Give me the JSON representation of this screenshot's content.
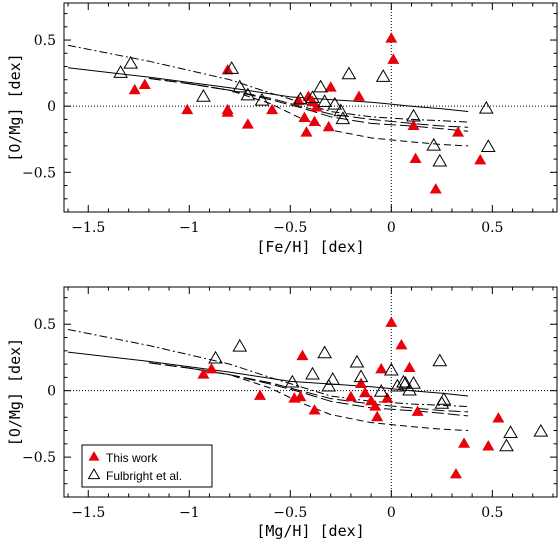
{
  "chart_data": [
    {
      "type": "scatter",
      "xlabel": "[Fe/H] [dex]",
      "ylabel": "[O/Mg] [dex]",
      "xlim": [
        -1.62,
        0.82
      ],
      "ylim": [
        -0.8,
        0.78
      ],
      "xticks": [
        -1.5,
        -1,
        -0.5,
        0,
        0.5
      ],
      "xtick_labels": [
        "−1.5",
        "−1",
        "−0.5",
        "0",
        "0.5"
      ],
      "yticks": [
        -0.5,
        0,
        0.5
      ],
      "ytick_labels": [
        "−0.5",
        "0",
        "0.5"
      ],
      "reference_lines": {
        "x": 0,
        "y": 0,
        "style": "dotted"
      },
      "series": [
        {
          "name": "This work",
          "marker": "filled-triangle",
          "color": "#e8000b",
          "points": [
            [
              0.0,
              0.51
            ],
            [
              0.01,
              0.35
            ],
            [
              -0.81,
              0.27
            ],
            [
              -1.27,
              0.12
            ],
            [
              -1.22,
              0.16
            ],
            [
              -1.01,
              -0.03
            ],
            [
              -0.81,
              -0.03
            ],
            [
              -0.81,
              -0.05
            ],
            [
              -0.71,
              -0.14
            ],
            [
              -0.59,
              -0.03
            ],
            [
              -0.46,
              0.04
            ],
            [
              -0.41,
              0.07
            ],
            [
              -0.39,
              0.03
            ],
            [
              -0.37,
              -0.01
            ],
            [
              -0.3,
              0.14
            ],
            [
              -0.16,
              0.07
            ],
            [
              -0.43,
              -0.09
            ],
            [
              -0.42,
              -0.2
            ],
            [
              -0.38,
              -0.12
            ],
            [
              -0.31,
              -0.16
            ],
            [
              0.11,
              -0.15
            ],
            [
              0.12,
              -0.4
            ],
            [
              0.22,
              -0.63
            ],
            [
              0.33,
              -0.2
            ],
            [
              0.44,
              -0.41
            ]
          ]
        },
        {
          "name": "Fulbright et al.",
          "marker": "open-triangle",
          "color": "#000000",
          "points": [
            [
              -1.34,
              0.25
            ],
            [
              -1.29,
              0.32
            ],
            [
              -0.93,
              0.07
            ],
            [
              -0.79,
              0.28
            ],
            [
              -0.75,
              0.14
            ],
            [
              -0.71,
              0.08
            ],
            [
              -0.64,
              0.04
            ],
            [
              -0.45,
              0.05
            ],
            [
              -0.39,
              0.06
            ],
            [
              -0.35,
              0.14
            ],
            [
              -0.33,
              0.03
            ],
            [
              -0.28,
              0.01
            ],
            [
              -0.25,
              -0.04
            ],
            [
              -0.24,
              -0.1
            ],
            [
              -0.21,
              0.24
            ],
            [
              -0.04,
              0.22
            ],
            [
              0.11,
              -0.08
            ],
            [
              0.21,
              -0.3
            ],
            [
              0.24,
              -0.42
            ],
            [
              0.47,
              -0.02
            ],
            [
              0.48,
              -0.31
            ]
          ]
        }
      ],
      "model_curves": [
        {
          "style": "solid",
          "x": [
            -1.6,
            -1.2,
            -0.8,
            -0.5,
            -0.3,
            -0.1,
            0.1,
            0.25,
            0.38
          ],
          "y": [
            0.29,
            0.22,
            0.14,
            0.07,
            0.05,
            0.03,
            0.0,
            -0.02,
            -0.04
          ]
        },
        {
          "style": "dash-dot",
          "x": [
            -1.6,
            -1.2,
            -0.8,
            -0.6,
            -0.45,
            -0.3,
            -0.1,
            0.1,
            0.25,
            0.38
          ],
          "y": [
            0.46,
            0.34,
            0.2,
            0.1,
            0.03,
            -0.04,
            -0.08,
            -0.1,
            -0.11,
            -0.12
          ]
        },
        {
          "style": "long-dash",
          "x": [
            -1.2,
            -1.0,
            -0.8,
            -0.6,
            -0.45,
            -0.3,
            -0.1,
            0.1,
            0.25,
            0.38
          ],
          "y": [
            0.21,
            0.17,
            0.12,
            0.06,
            0.0,
            -0.06,
            -0.1,
            -0.13,
            -0.15,
            -0.16
          ]
        },
        {
          "style": "long-dash",
          "x": [
            -1.2,
            -1.0,
            -0.8,
            -0.6,
            -0.45,
            -0.3,
            -0.1,
            0.1,
            0.25,
            0.38
          ],
          "y": [
            0.21,
            0.17,
            0.12,
            0.05,
            -0.01,
            -0.08,
            -0.13,
            -0.15,
            -0.17,
            -0.19
          ]
        },
        {
          "style": "dashed",
          "x": [
            -1.0,
            -0.8,
            -0.6,
            -0.45,
            -0.3,
            -0.1,
            0.1,
            0.25,
            0.38
          ],
          "y": [
            0.17,
            0.12,
            0.02,
            -0.09,
            -0.18,
            -0.24,
            -0.27,
            -0.29,
            -0.3
          ]
        }
      ]
    },
    {
      "type": "scatter",
      "xlabel": "[Mg/H] [dex]",
      "ylabel": "[O/Mg] [dex]",
      "xlim": [
        -1.62,
        0.82
      ],
      "ylim": [
        -0.8,
        0.78
      ],
      "xticks": [
        -1.5,
        -1,
        -0.5,
        0,
        0.5
      ],
      "xtick_labels": [
        "−1.5",
        "−1",
        "−0.5",
        "0",
        "0.5"
      ],
      "yticks": [
        -0.5,
        0,
        0.5
      ],
      "ytick_labels": [
        "−0.5",
        "0",
        "0.5"
      ],
      "reference_lines": {
        "x": 0,
        "y": 0,
        "style": "dotted"
      },
      "legend": {
        "position": "bottom-left",
        "entries": [
          "This work",
          "Fulbright et al."
        ]
      },
      "series": [
        {
          "name": "This work",
          "marker": "filled-triangle",
          "color": "#e8000b",
          "points": [
            [
              -0.93,
              0.12
            ],
            [
              -0.89,
              0.16
            ],
            [
              -0.65,
              -0.04
            ],
            [
              -0.48,
              -0.06
            ],
            [
              -0.45,
              -0.05
            ],
            [
              -0.44,
              0.26
            ],
            [
              -0.38,
              -0.15
            ],
            [
              -0.2,
              -0.05
            ],
            [
              -0.15,
              0.05
            ],
            [
              -0.13,
              -0.02
            ],
            [
              -0.1,
              -0.08
            ],
            [
              -0.08,
              -0.12
            ],
            [
              -0.07,
              -0.2
            ],
            [
              -0.05,
              0.16
            ],
            [
              -0.02,
              -0.06
            ],
            [
              0.0,
              0.51
            ],
            [
              0.05,
              0.34
            ],
            [
              0.09,
              0.17
            ],
            [
              0.13,
              -0.16
            ],
            [
              0.32,
              -0.63
            ],
            [
              0.36,
              -0.4
            ],
            [
              0.48,
              -0.42
            ],
            [
              0.53,
              -0.21
            ]
          ]
        },
        {
          "name": "Fulbright et al.",
          "marker": "open-triangle",
          "color": "#000000",
          "points": [
            [
              -0.87,
              0.24
            ],
            [
              -0.75,
              0.33
            ],
            [
              -0.49,
              0.06
            ],
            [
              -0.39,
              0.12
            ],
            [
              -0.33,
              0.28
            ],
            [
              -0.31,
              0.03
            ],
            [
              -0.29,
              0.08
            ],
            [
              -0.17,
              0.21
            ],
            [
              -0.15,
              0.1
            ],
            [
              -0.05,
              -0.01
            ],
            [
              0.0,
              0.15
            ],
            [
              0.03,
              0.03
            ],
            [
              0.06,
              0.06
            ],
            [
              0.07,
              0.05
            ],
            [
              0.09,
              0.0
            ],
            [
              0.11,
              0.05
            ],
            [
              0.24,
              0.22
            ],
            [
              0.25,
              -0.1
            ],
            [
              0.26,
              -0.07
            ],
            [
              0.57,
              -0.42
            ],
            [
              0.59,
              -0.32
            ],
            [
              0.74,
              -0.31
            ]
          ]
        }
      ],
      "model_curves": [
        {
          "style": "solid",
          "x": [
            -1.6,
            -1.2,
            -0.8,
            -0.5,
            -0.3,
            -0.1,
            0.1,
            0.25,
            0.38
          ],
          "y": [
            0.29,
            0.22,
            0.14,
            0.07,
            0.05,
            0.03,
            0.0,
            -0.02,
            -0.04
          ]
        },
        {
          "style": "dash-dot",
          "x": [
            -1.6,
            -1.2,
            -0.8,
            -0.6,
            -0.45,
            -0.3,
            -0.1,
            0.1,
            0.25,
            0.38
          ],
          "y": [
            0.46,
            0.34,
            0.2,
            0.1,
            0.03,
            -0.04,
            -0.08,
            -0.1,
            -0.11,
            -0.12
          ]
        },
        {
          "style": "long-dash",
          "x": [
            -1.2,
            -1.0,
            -0.8,
            -0.6,
            -0.45,
            -0.3,
            -0.1,
            0.1,
            0.25,
            0.38
          ],
          "y": [
            0.21,
            0.17,
            0.12,
            0.06,
            0.0,
            -0.06,
            -0.1,
            -0.13,
            -0.15,
            -0.16
          ]
        },
        {
          "style": "long-dash",
          "x": [
            -1.2,
            -1.0,
            -0.8,
            -0.6,
            -0.45,
            -0.3,
            -0.1,
            0.1,
            0.25,
            0.38
          ],
          "y": [
            0.21,
            0.17,
            0.12,
            0.05,
            -0.01,
            -0.08,
            -0.13,
            -0.15,
            -0.17,
            -0.19
          ]
        },
        {
          "style": "dashed",
          "x": [
            -1.0,
            -0.8,
            -0.6,
            -0.45,
            -0.3,
            -0.1,
            0.1,
            0.25,
            0.38
          ],
          "y": [
            0.17,
            0.12,
            0.02,
            -0.09,
            -0.18,
            -0.24,
            -0.27,
            -0.29,
            -0.3
          ]
        }
      ]
    }
  ]
}
